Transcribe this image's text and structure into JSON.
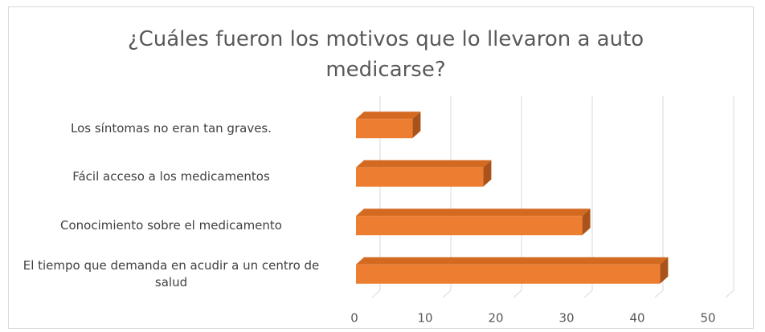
{
  "chart_data": {
    "type": "bar3d_horizontal",
    "title": "¿Cuáles fueron los motivos que lo llevaron a auto medicarse?",
    "categories": [
      "Los síntomas no eran tan graves.",
      "Fácil acceso a los medicamentos",
      "Conocimiento sobre el medicamento",
      "El tiempo que demanda en acudir a un centro de salud"
    ],
    "values": [
      8,
      18,
      32,
      43
    ],
    "color": "#ed7d31",
    "xlim": [
      0,
      50
    ],
    "xticks": [
      0,
      10,
      20,
      30,
      40,
      50
    ],
    "grid": true
  }
}
